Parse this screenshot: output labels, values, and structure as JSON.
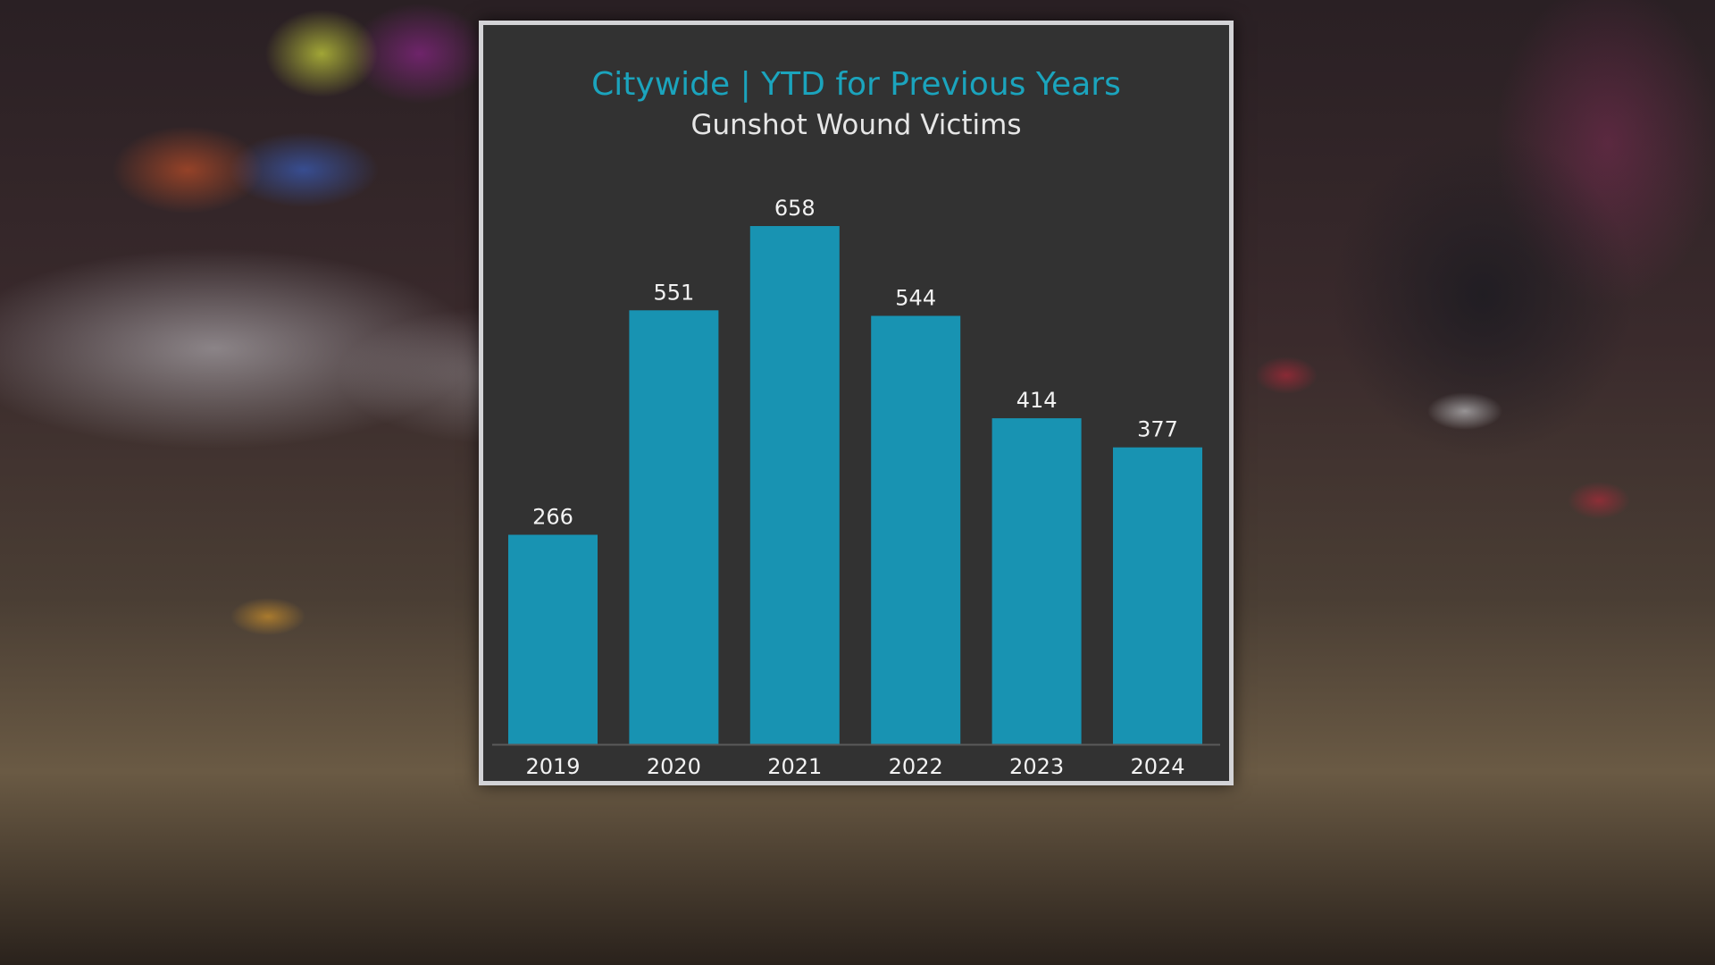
{
  "chart_data": {
    "type": "bar",
    "title": "Citywide | YTD for Previous Years",
    "subtitle": "Gunshot Wound Victims",
    "categories": [
      "2019",
      "2020",
      "2021",
      "2022",
      "2023",
      "2024"
    ],
    "values": [
      266,
      551,
      658,
      544,
      414,
      377
    ],
    "xlabel": "",
    "ylabel": "",
    "ylim": [
      0,
      658
    ],
    "grid": false,
    "legend": "none",
    "data_labels": true,
    "bar_color": "#1893b2",
    "title_color": "#1ba4bd",
    "subtitle_color": "#e6e6e6",
    "panel_background": "#323232"
  }
}
